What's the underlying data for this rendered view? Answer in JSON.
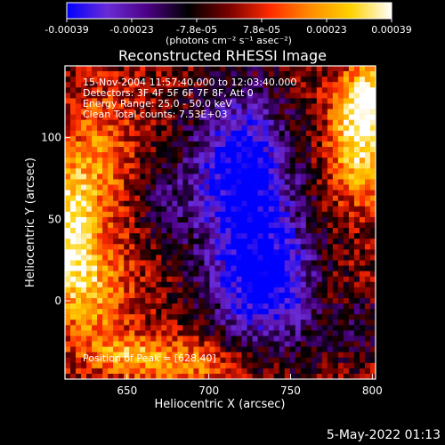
{
  "chart_data": {
    "type": "heatmap",
    "title": "Reconstructed RHESSI Image",
    "xlabel": "Heliocentric X (arcsec)",
    "ylabel": "Heliocentric Y (arcsec)",
    "xlim": [
      612,
      802
    ],
    "ylim": [
      -48,
      144
    ],
    "x_ticks": [
      650,
      700,
      750,
      800
    ],
    "y_ticks": [
      0,
      50,
      100
    ],
    "colorbar": {
      "min": -0.00039,
      "max": 0.00039,
      "ticks": [
        "-0.00039",
        "-0.00023",
        "-7.8e-05",
        "7.8e-05",
        "0.00023",
        "0.00039"
      ],
      "label": "(photons cm⁻² s⁻¹ asec⁻²)",
      "colors": [
        "#0000ff",
        "#6a2bd6",
        "#4b0082",
        "#000000",
        "#7a0000",
        "#ff2a00",
        "#ff8c00",
        "#ffd200",
        "#ffffff"
      ]
    },
    "annotations": [
      "15-Nov-2004 11:57:40.000 to 12:03:40.000",
      "Detectors: 3F 4F 5F 6F 7F 8F, Att 0",
      "Energy Range: 25.0 - 50.0 keV",
      "Clean    Total counts: 7.53E+03",
      "Position of Peak = [628,40]"
    ]
  },
  "footer": {
    "timestamp": "5-May-2022 01:13"
  }
}
